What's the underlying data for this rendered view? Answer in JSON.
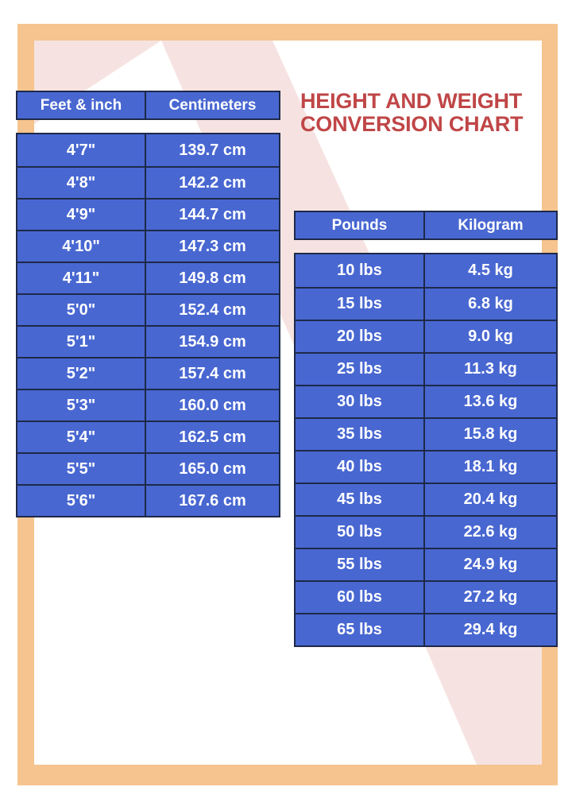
{
  "title": {
    "line1": "HEIGHT AND WEIGHT",
    "line2": "CONVERSION CHART"
  },
  "height_table": {
    "headers": [
      "Feet & inch",
      "Centimeters"
    ],
    "rows": [
      [
        "4'7\"",
        "139.7 cm"
      ],
      [
        "4'8\"",
        "142.2 cm"
      ],
      [
        "4'9\"",
        "144.7 cm"
      ],
      [
        "4'10\"",
        "147.3 cm"
      ],
      [
        "4'11\"",
        "149.8 cm"
      ],
      [
        "5'0\"",
        "152.4 cm"
      ],
      [
        "5'1\"",
        "154.9 cm"
      ],
      [
        "5'2\"",
        "157.4 cm"
      ],
      [
        "5'3\"",
        "160.0 cm"
      ],
      [
        "5'4\"",
        "162.5 cm"
      ],
      [
        "5'5\"",
        "165.0 cm"
      ],
      [
        "5'6\"",
        "167.6 cm"
      ]
    ]
  },
  "weight_table": {
    "headers": [
      "Pounds",
      "Kilogram"
    ],
    "rows": [
      [
        "10 lbs",
        "4.5 kg"
      ],
      [
        "15 lbs",
        "6.8 kg"
      ],
      [
        "20 lbs",
        "9.0 kg"
      ],
      [
        "25 lbs",
        "11.3 kg"
      ],
      [
        "30 lbs",
        "13.6 kg"
      ],
      [
        "35 lbs",
        "15.8 kg"
      ],
      [
        "40 lbs",
        "18.1 kg"
      ],
      [
        "45 lbs",
        "20.4 kg"
      ],
      [
        "50 lbs",
        "22.6 kg"
      ],
      [
        "55 lbs",
        "24.9 kg"
      ],
      [
        "60 lbs",
        "27.2 kg"
      ],
      [
        "65 lbs",
        "29.4 kg"
      ]
    ]
  },
  "colors": {
    "table_blue": "#4867d1",
    "table_border_navy": "#1e2949",
    "frame_orange": "#f6c48e",
    "stripe_pink": "#f6e3e1",
    "title_red": "#c04647",
    "cell_text": "#ffffff"
  }
}
